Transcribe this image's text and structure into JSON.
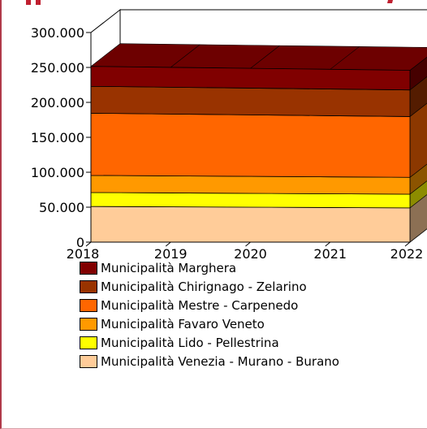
{
  "chart_data": {
    "type": "area",
    "stacked": true,
    "three_d": true,
    "x": [
      "2018",
      "2019",
      "2020",
      "2021",
      "2022"
    ],
    "ylim": [
      0,
      300000
    ],
    "y_ticks": [
      "0",
      "50.000",
      "100.000",
      "150.000",
      "200.000",
      "250.000",
      "300.000"
    ],
    "y_tick_values": [
      0,
      50000,
      100000,
      150000,
      200000,
      250000,
      300000
    ],
    "legend_position": "bottom",
    "series": [
      {
        "name": "Municipalità Venezia - Murano - Burano",
        "color": "#ffcc99",
        "values": [
          51000,
          50500,
          50000,
          49500,
          49000
        ]
      },
      {
        "name": "Municipalità Lido - Pellestrina",
        "color": "#ffff00",
        "values": [
          20000,
          19900,
          19800,
          19700,
          19600
        ]
      },
      {
        "name": "Municipalità Favaro Veneto",
        "color": "#ff9900",
        "values": [
          24500,
          24400,
          24300,
          24200,
          24100
        ]
      },
      {
        "name": "Municipalità Mestre - Carpenedo",
        "color": "#ff6600",
        "values": [
          89000,
          88500,
          88000,
          87500,
          87000
        ]
      },
      {
        "name": "Municipalità Chirignago - Zelarino",
        "color": "#993300",
        "values": [
          38500,
          38400,
          38300,
          38200,
          38100
        ]
      },
      {
        "name": "Municipalità Marghera",
        "color": "#800000",
        "values": [
          28500,
          28400,
          28300,
          28200,
          28100
        ]
      }
    ]
  },
  "colors": {
    "frame_border": "#b03a4a",
    "header_fragment": "#c02030"
  }
}
